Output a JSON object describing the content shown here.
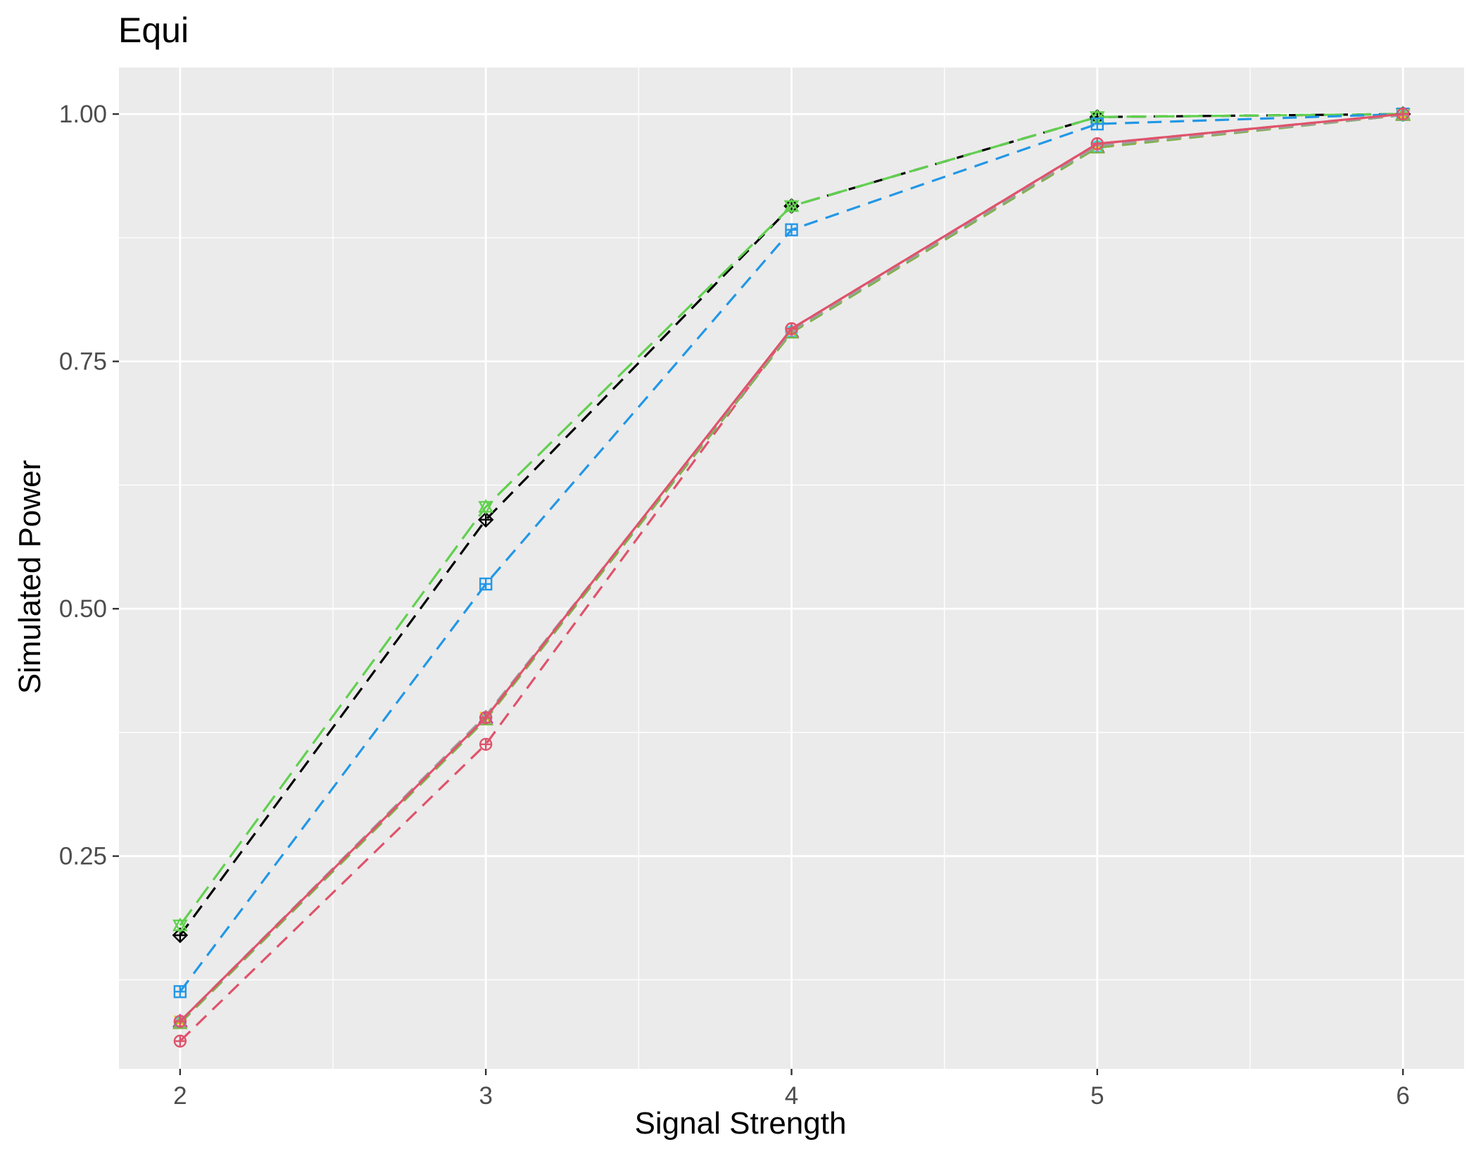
{
  "chart_data": {
    "type": "line",
    "title": "Equi",
    "xlabel": "Signal Strength",
    "ylabel": "Simulated Power",
    "x": [
      2,
      3,
      4,
      5,
      6
    ],
    "x_ticks": [
      "2",
      "3",
      "4",
      "5",
      "6"
    ],
    "y_ticks": [
      "0.25",
      "0.50",
      "0.75",
      "1.00"
    ],
    "y_tick_values": [
      0.25,
      0.5,
      0.75,
      1.0
    ],
    "xlim": [
      1.8,
      6.2
    ],
    "ylim": [
      0.035,
      1.047
    ],
    "grid": true,
    "legend": "none",
    "series": [
      {
        "color": "#000000",
        "dash": "dashed",
        "marker": "diamond-plus",
        "values": [
          0.17,
          0.59,
          0.907,
          0.997,
          1.0
        ]
      },
      {
        "color": "#61D04F",
        "dash": "longdash",
        "marker": "star-triangle",
        "values": [
          0.18,
          0.603,
          0.907,
          0.997,
          1.0
        ]
      },
      {
        "color": "#2297E6",
        "dash": "dashed",
        "marker": "square-plus",
        "values": [
          0.113,
          0.525,
          0.883,
          0.99,
          1.0
        ]
      },
      {
        "color": "#DF536B",
        "dash": "dashed",
        "marker": "circle-plus",
        "values": [
          0.063,
          0.363,
          0.783,
          0.97,
          1.0
        ]
      },
      {
        "color": "#CD0BBC",
        "dash": "dashed",
        "marker": "triangle",
        "values": [
          0.083,
          0.39,
          0.78,
          0.967,
          0.999
        ]
      },
      {
        "color": "#F5C710",
        "dash": "dashed",
        "marker": "cross",
        "values": [
          0.083,
          0.39,
          0.78,
          0.967,
          0.999
        ]
      },
      {
        "color": "#28E2E5",
        "dash": "dashed",
        "marker": "circle",
        "values": [
          0.082,
          0.39,
          0.78,
          0.967,
          0.999
        ]
      },
      {
        "color": "#7FB24A",
        "dash": "dashed",
        "marker": "triangle",
        "values": [
          0.081,
          0.388,
          0.779,
          0.966,
          0.999
        ]
      },
      {
        "color": "#9E9E9E",
        "dash": "dashed",
        "marker": "plus",
        "values": [
          0.083,
          0.392,
          0.781,
          0.968,
          0.999
        ]
      },
      {
        "color": "#DF536B",
        "dash": "solid",
        "marker": "circle-plus",
        "values": [
          0.083,
          0.39,
          0.783,
          0.97,
          1.0
        ]
      }
    ]
  }
}
